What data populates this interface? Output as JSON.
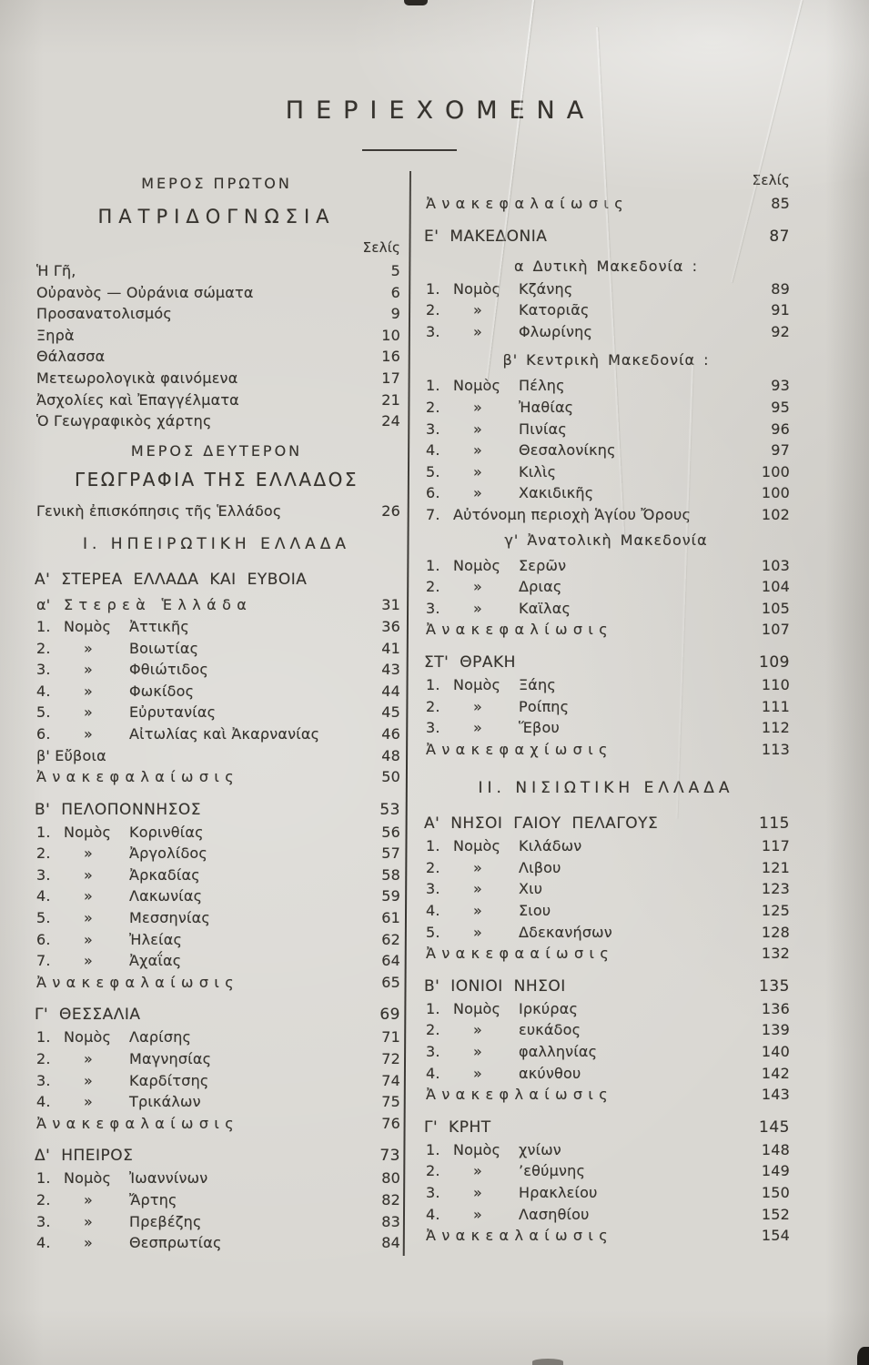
{
  "page": {
    "title": "ΠΕΡΙΕΧΟΜΕΝΑ",
    "ink_color": "#36332e",
    "paper_color": "#d9d7d2"
  },
  "columns": {
    "left": {
      "items": [
        {
          "t": "hc",
          "x": "ΜΕΡΟΣ ΠΡΩΤΟΝ"
        },
        {
          "t": "ht",
          "x": "ΠΑΤΡΙΔΟΓΝΩΣΙΑ",
          "g": 2
        },
        {
          "t": "selis",
          "x": "Σελίς",
          "g": 2
        },
        {
          "t": "e",
          "x": "Ἡ Γῆ,",
          "p": "5",
          "g": 1
        },
        {
          "t": "e",
          "x": "Οὐρανὸς — Οὐράνια σώματα",
          "p": "6"
        },
        {
          "t": "e",
          "x": "Προσανατολισμός",
          "p": "9"
        },
        {
          "t": "e",
          "x": "Ξηρὰ",
          "p": "10"
        },
        {
          "t": "e",
          "x": "Θάλασσα",
          "p": "16"
        },
        {
          "t": "e",
          "x": "Μετεωρολογικὰ φαινόμενα",
          "p": "17"
        },
        {
          "t": "e",
          "x": "Ἀσχολίες καὶ Ἐπαγγέλματα",
          "p": "21"
        },
        {
          "t": "e",
          "x": "Ὁ Γεωγραφικὸς χάρτης",
          "p": "24"
        },
        {
          "t": "hc",
          "x": "ΜΕΡΟΣ ΔΕΥΤΕΡΟΝ",
          "g": 2
        },
        {
          "t": "ht2",
          "x": "ΓΕΩΓΡΑΦΙΑ ΤΗΣ ΕΛΛΑΔΟΣ",
          "g": 1
        },
        {
          "t": "e",
          "x": "Γενικὴ ἐπισκόπησις τῆς Ἑλλάδος",
          "p": "26",
          "g": 2
        },
        {
          "t": "hc2",
          "x": "Ι. ΗΠΕΙΡΩΤΙΚΗ ΕΛΛΑΔΑ",
          "g": 3
        },
        {
          "t": "sec",
          "x": "Α' ΣΤΕΡΕΑ ΕΛΛΑΔΑ ΚΑΙ ΕΥΒΟΙΑ",
          "g": 3
        },
        {
          "t": "sp",
          "pre": "α'",
          "x": "Στερεὰ Ἑλλάδα",
          "p": "31",
          "g": 1
        },
        {
          "t": "nomos",
          "n": "1.",
          "m": "Νομὸς",
          "x": "Ἀττικῆς",
          "p": "36"
        },
        {
          "t": "nomos",
          "n": "2.",
          "m": "»",
          "x": "Βοιωτίας",
          "p": "41"
        },
        {
          "t": "nomos",
          "n": "3.",
          "m": "»",
          "x": "Φθιώτιδος",
          "p": "43"
        },
        {
          "t": "nomos",
          "n": "4.",
          "m": "»",
          "x": "Φωκίδος",
          "p": "44"
        },
        {
          "t": "nomos",
          "n": "5.",
          "m": "»",
          "x": "Εὐρυτανίας",
          "p": "45"
        },
        {
          "t": "nomos",
          "n": "6.",
          "m": "»",
          "x": "Αἰτωλίας καὶ Ἀκαρνανίας",
          "p": "46"
        },
        {
          "t": "e",
          "x": "β' Εὔβοια",
          "p": "48"
        },
        {
          "t": "sp",
          "x": "Ἀνακεφαλαίωσις",
          "p": "50"
        },
        {
          "t": "sec",
          "x": "Β' ΠΕΛΟΠΟΝΝΗΣΟΣ",
          "p": "53",
          "g": 3
        },
        {
          "t": "nomos",
          "n": "1.",
          "m": "Νομὸς",
          "x": "Κορινθίας",
          "p": "56"
        },
        {
          "t": "nomos",
          "n": "2.",
          "m": "»",
          "x": "Ἀργολίδος",
          "p": "57"
        },
        {
          "t": "nomos",
          "n": "3.",
          "m": "»",
          "x": "Ἀρκαδίας",
          "p": "58"
        },
        {
          "t": "nomos",
          "n": "4.",
          "m": "»",
          "x": "Λακωνίας",
          "p": "59"
        },
        {
          "t": "nomos",
          "n": "5.",
          "m": "»",
          "x": "Μεσσηνίας",
          "p": "61"
        },
        {
          "t": "nomos",
          "n": "6.",
          "m": "»",
          "x": "Ἠλείας",
          "p": "62"
        },
        {
          "t": "nomos",
          "n": "7.",
          "m": "»",
          "x": "Ἀχαΐας",
          "p": "64"
        },
        {
          "t": "sp",
          "x": "Ἀνακεφαλαίωσις",
          "p": "65"
        },
        {
          "t": "sec",
          "x": "Γ' ΘΕΣΣΑΛΙΑ",
          "p": "69",
          "g": 3
        },
        {
          "t": "nomos",
          "n": "1.",
          "m": "Νομὸς",
          "x": "Λαρίσης",
          "p": "71"
        },
        {
          "t": "nomos",
          "n": "2.",
          "m": "»",
          "x": "Μαγνησίας",
          "p": "72"
        },
        {
          "t": "nomos",
          "n": "3.",
          "m": "»",
          "x": "Καρδίτσης",
          "p": "74"
        },
        {
          "t": "nomos",
          "n": "4.",
          "m": "»",
          "x": "Τρικάλων",
          "p": "75"
        },
        {
          "t": "sp",
          "x": "Ἀνακεφαλαίωσις",
          "p": "76"
        },
        {
          "t": "sec",
          "x": "Δ' ΗΠΕΙΡΟΣ",
          "p": "73",
          "g": 3
        },
        {
          "t": "nomos",
          "n": "1.",
          "m": "Νομὸς",
          "x": "Ἰωαννίνων",
          "p": "80"
        },
        {
          "t": "nomos",
          "n": "2.",
          "m": "»",
          "x": "Ἄρτης",
          "p": "82"
        },
        {
          "t": "nomos",
          "n": "3.",
          "m": "»",
          "x": "Πρεβέζης",
          "p": "83"
        },
        {
          "t": "nomos",
          "n": "4.",
          "m": "»",
          "x": "Θεσπρωτίας",
          "p": "84"
        }
      ]
    },
    "right": {
      "items": [
        {
          "t": "selis",
          "x": "Σελίς"
        },
        {
          "t": "sp",
          "x": "Ἀνακεφαλαίωσις",
          "p": "85",
          "g": 1
        },
        {
          "t": "sec",
          "x": "Ε' ΜΑΚΕΔΟΝΙΑ",
          "p": "87",
          "g": 3
        },
        {
          "t": "sub",
          "x": "α Δυτικὴ Μακεδονία :",
          "g": 2
        },
        {
          "t": "nomos",
          "n": "1.",
          "m": "Νομὸς",
          "x": "Κζάνης",
          "p": "89"
        },
        {
          "t": "nomos",
          "n": "2.",
          "m": "»",
          "x": "Κατοριᾶς",
          "p": "91"
        },
        {
          "t": "nomos",
          "n": "3.",
          "m": "»",
          "x": "Φλωρίνης",
          "p": "92"
        },
        {
          "t": "sub",
          "x": "β' Κεντρικὴ Μακεδονία :",
          "g": 2
        },
        {
          "t": "nomos",
          "n": "1.",
          "m": "Νομὸς",
          "x": "Πέλης",
          "p": "93",
          "g": 1
        },
        {
          "t": "nomos",
          "n": "2.",
          "m": "»",
          "x": "Ἠαθίας",
          "p": "95"
        },
        {
          "t": "nomos",
          "n": "3.",
          "m": "»",
          "x": "Πινίας",
          "p": "96"
        },
        {
          "t": "nomos",
          "n": "4.",
          "m": "»",
          "x": "Θεσαλονίκης",
          "p": "97"
        },
        {
          "t": "nomos",
          "n": "5.",
          "m": "»",
          "x": "Κιλὶς",
          "p": "100"
        },
        {
          "t": "nomos",
          "n": "6.",
          "m": "»",
          "x": "Χακιδικῆς",
          "p": "100"
        },
        {
          "t": "numwide",
          "n": "7.",
          "x": "Αὐτόνομη περιοχὴ Ἁγίου Ὄρους",
          "p": "102"
        },
        {
          "t": "sub",
          "x": "γ' Ἀνατολικὴ Μακεδονία",
          "g": 1
        },
        {
          "t": "nomos",
          "n": "1.",
          "m": "Νομὸς",
          "x": "Σερῶν",
          "p": "103",
          "g": 1
        },
        {
          "t": "nomos",
          "n": "2.",
          "m": "»",
          "x": "Δριας",
          "p": "104"
        },
        {
          "t": "nomos",
          "n": "3.",
          "m": "»",
          "x": "Καϊλας",
          "p": "105"
        },
        {
          "t": "sp",
          "x": "Ἀνακεφαλίωσις",
          "p": "107"
        },
        {
          "t": "sec",
          "x": "ΣΤ' ΘΡΑΚΗ",
          "p": "109",
          "g": 3
        },
        {
          "t": "nomos",
          "n": "1.",
          "m": "Νομὸς",
          "x": "Ξάης",
          "p": "110"
        },
        {
          "t": "nomos",
          "n": "2.",
          "m": "»",
          "x": "Ροίπης",
          "p": "111"
        },
        {
          "t": "nomos",
          "n": "3.",
          "m": "»",
          "x": "Ἕβου",
          "p": "112"
        },
        {
          "t": "sp",
          "x": "Ἀνακεφαχίωσις",
          "p": "113"
        },
        {
          "t": "hc2",
          "x": "ΙΙ. ΝΙΣΙΩΤΙΚΗ ΕΛΛΑΔΑ",
          "g": 4
        },
        {
          "t": "sec",
          "x": "Α' ΝΗΣΟΙ ΓΑΙΟΥ ΠΕΛΑΓΟΥΣ",
          "p": "115",
          "g": 3
        },
        {
          "t": "nomos",
          "n": "1.",
          "m": "Νομὸς",
          "x": "Κιλάδων",
          "p": "117"
        },
        {
          "t": "nomos",
          "n": "2.",
          "m": "»",
          "x": "Λιβου",
          "p": "121"
        },
        {
          "t": "nomos",
          "n": "3.",
          "m": "»",
          "x": "Χιυ",
          "p": "123"
        },
        {
          "t": "nomos",
          "n": "4.",
          "m": "»",
          "x": "Σιου",
          "p": "125"
        },
        {
          "t": "nomos",
          "n": "5.",
          "m": "»",
          "x": "Δδεκανήσων",
          "p": "128"
        },
        {
          "t": "sp",
          "x": "Ἀνακεφααίωσις",
          "p": "132"
        },
        {
          "t": "sec",
          "x": "Β' ΙΟΝΙΟΙ ΝΗΣΟΙ",
          "p": "135",
          "g": 3
        },
        {
          "t": "nomos",
          "n": "1.",
          "m": "Νομὸς",
          "x": "Ιρκύρας",
          "p": "136"
        },
        {
          "t": "nomos",
          "n": "2.",
          "m": "»",
          "x": "ευκάδος",
          "p": "139"
        },
        {
          "t": "nomos",
          "n": "3.",
          "m": "»",
          "x": "φαλληνίας",
          "p": "140"
        },
        {
          "t": "nomos",
          "n": "4.",
          "m": "»",
          "x": "ακύνθου",
          "p": "142"
        },
        {
          "t": "sp",
          "x": "Ἀνακεφλαίωσις",
          "p": "143"
        },
        {
          "t": "sec",
          "x": "Γ' ΚΡΗΤ",
          "p": "145",
          "g": 3
        },
        {
          "t": "nomos",
          "n": "1.",
          "m": "Νομὸς",
          "x": "χνίων",
          "p": "148"
        },
        {
          "t": "nomos",
          "n": "2.",
          "m": "»",
          "x": "’εθύμνης",
          "p": "149"
        },
        {
          "t": "nomos",
          "n": "3.",
          "m": "»",
          "x": "Ηρακλείου",
          "p": "150"
        },
        {
          "t": "nomos",
          "n": "4.",
          "m": "»",
          "x": "Λασηθίου",
          "p": "152"
        },
        {
          "t": "sp",
          "x": "Ἀνακεαλαίωσις",
          "p": "154"
        }
      ]
    }
  }
}
